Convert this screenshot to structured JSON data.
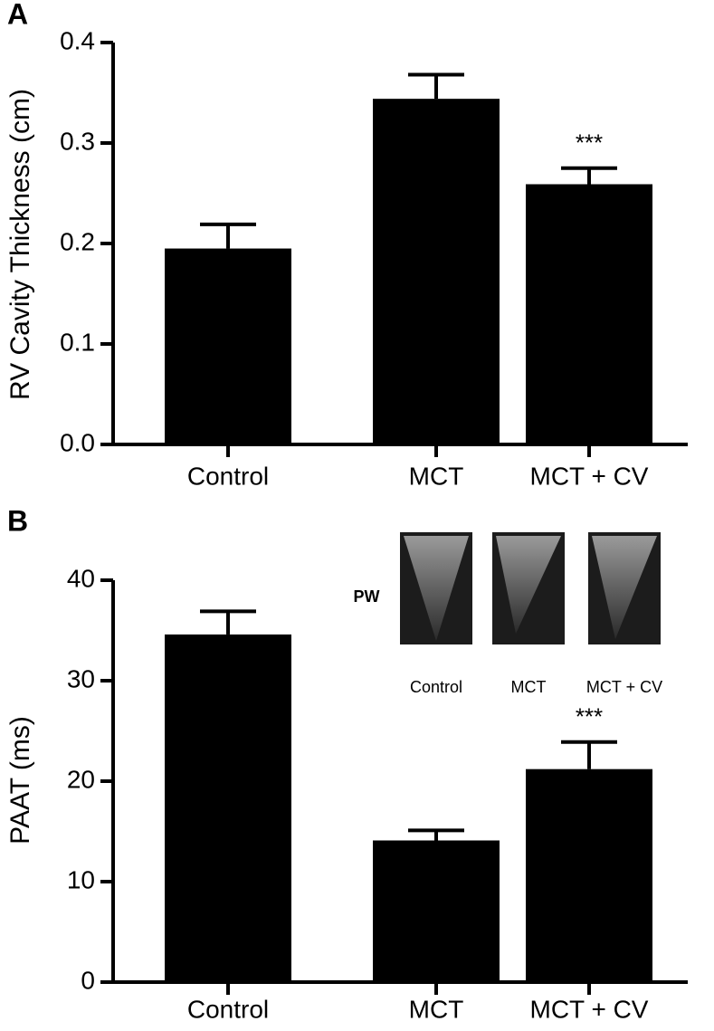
{
  "chart_data": [
    {
      "type": "bar",
      "panel_label": "A",
      "ylabel": "RV Cavity Thickness (cm)",
      "categories": [
        "Control",
        "MCT",
        "MCT + CV"
      ],
      "values": [
        0.195,
        0.344,
        0.259
      ],
      "errors": [
        0.024,
        0.024,
        0.016
      ],
      "color": "#000000",
      "ylim": [
        0,
        0.4
      ],
      "yticks": [
        {
          "value": 0,
          "label": "0.0"
        },
        0.1,
        0.2,
        0.3,
        0.4
      ],
      "annotations": [
        {
          "category": 2,
          "text": "***"
        }
      ]
    },
    {
      "type": "bar",
      "panel_label": "B",
      "ylabel": "PAAT (ms)",
      "categories": [
        "Control",
        "MCT",
        "MCT + CV"
      ],
      "values": [
        34.6,
        14.1,
        21.2
      ],
      "errors": [
        2.3,
        1.0,
        2.7
      ],
      "color": "#000000",
      "ylim": [
        0,
        40
      ],
      "yticks": [
        0,
        10,
        20,
        30,
        40
      ],
      "annotations": [
        {
          "category": 2,
          "text": "***"
        }
      ],
      "inset": {
        "label": "PW",
        "captions": [
          "Control",
          "MCT",
          "MCT + CV"
        ]
      }
    }
  ]
}
